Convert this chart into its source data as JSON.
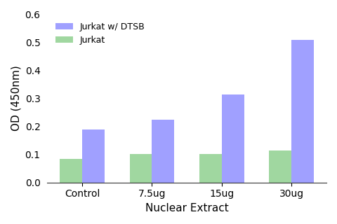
{
  "categories": [
    "Control",
    "7.5ug",
    "15ug",
    "30ug"
  ],
  "series": [
    {
      "label": "Jurkat",
      "values": [
        0.085,
        0.102,
        0.102,
        0.115
      ],
      "color": "#7bc87b"
    },
    {
      "label": "Jurkat w/ DTSB",
      "values": [
        0.19,
        0.225,
        0.315,
        0.51
      ],
      "color": "#7b7bff"
    }
  ],
  "xlabel": "Nuclear Extract",
  "ylabel": "OD (450nm)",
  "ylim": [
    0,
    0.6
  ],
  "yticks": [
    0.0,
    0.1,
    0.2,
    0.3,
    0.4,
    0.5,
    0.6
  ],
  "bar_width": 0.32,
  "legend_labels_order": [
    "Jurkat w/ DTSB",
    "Jurkat"
  ],
  "legend_loc": "upper left",
  "background_color": "#ffffff",
  "alpha": 0.72
}
